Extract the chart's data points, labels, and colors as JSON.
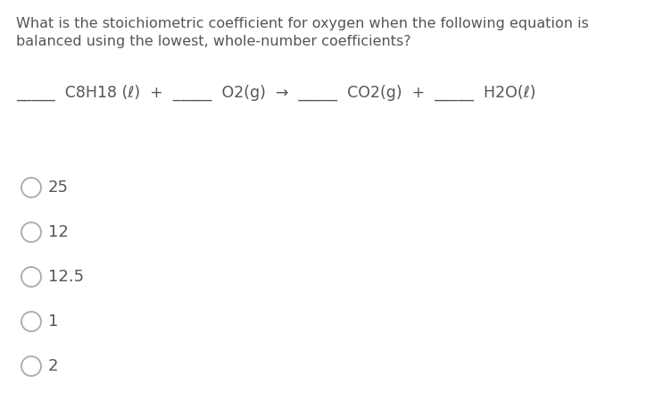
{
  "title_line1": "What is the stoichiometric coefficient for oxygen when the following equation is",
  "title_line2": "balanced using the lowest, whole-number coefficients?",
  "equation_text": "_____  C8H18 (ℓ)  +  _____  O2(g)  →  _____  CO2(g)  +  _____  H2O(ℓ)",
  "choices": [
    "25",
    "12",
    "12.5",
    "1",
    "2"
  ],
  "background_color": "#ffffff",
  "text_color": "#555555",
  "title_fontsize": 11.5,
  "equation_fontsize": 12.5,
  "choice_fontsize": 13,
  "font_family": "DejaVu Sans"
}
